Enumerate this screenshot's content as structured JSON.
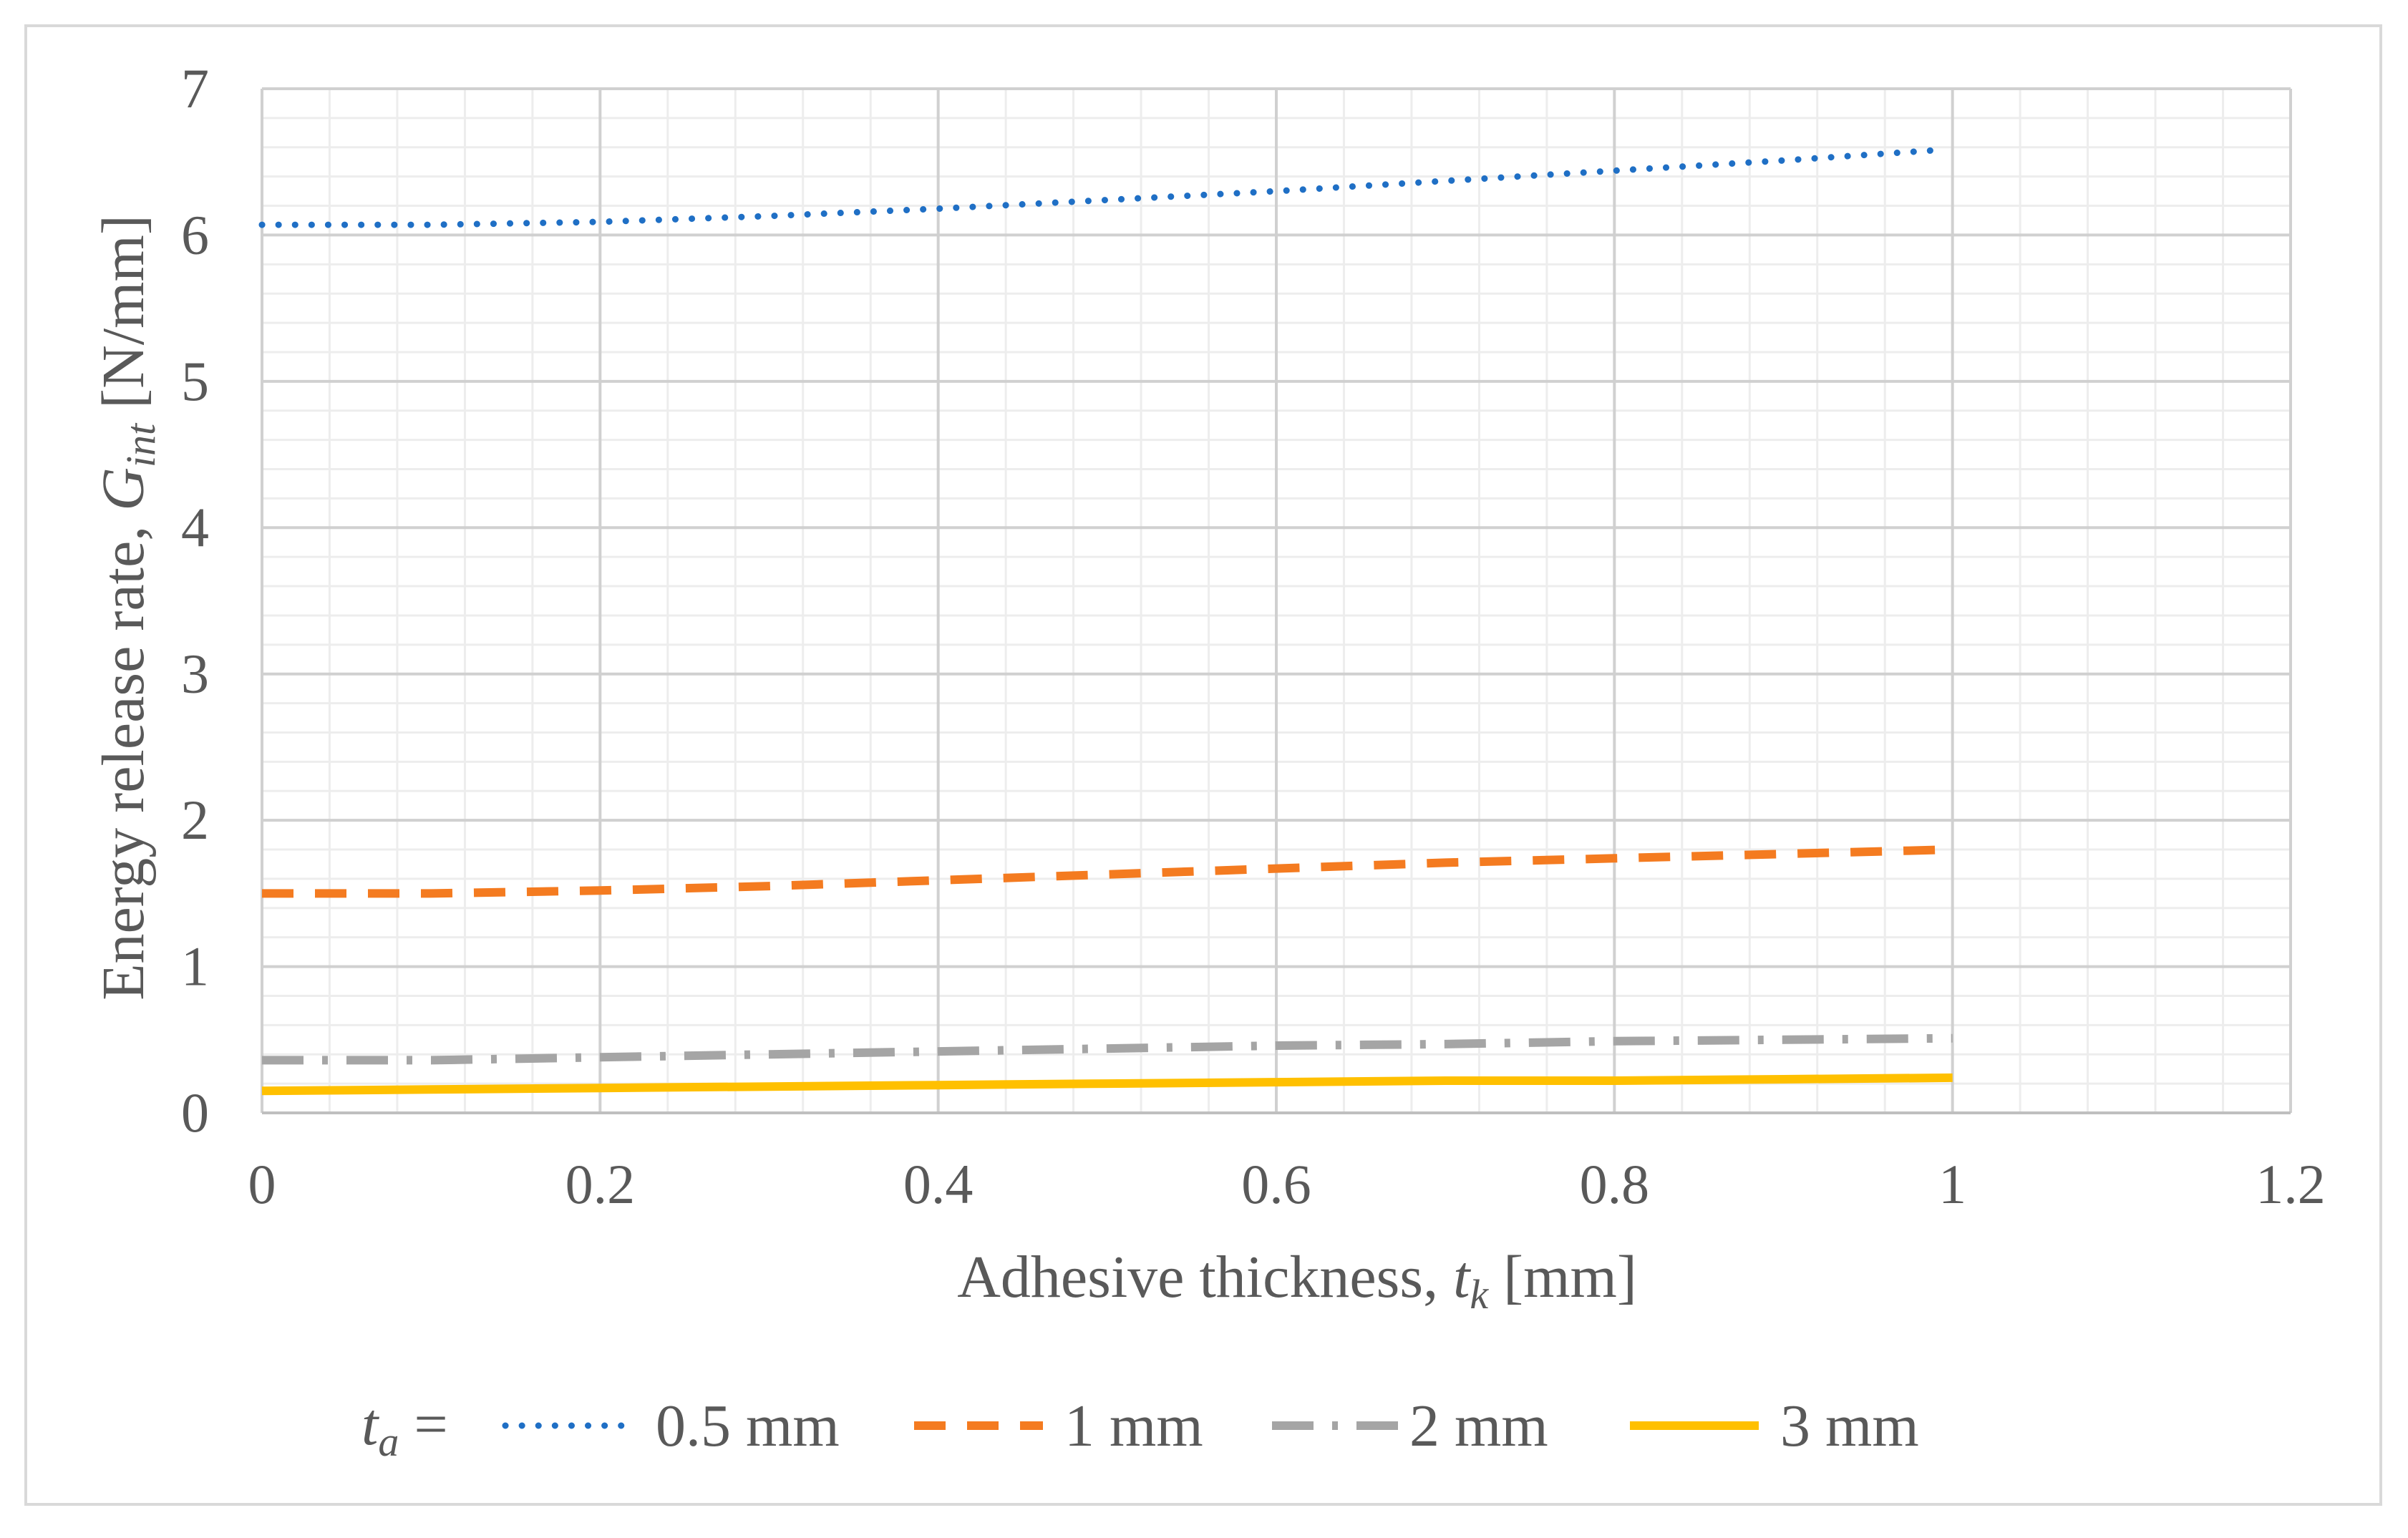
{
  "chart_data": {
    "type": "line",
    "title": "",
    "xlabel": {
      "prefix": "Adhesive thickness, ",
      "symbol": "t",
      "subscript": "k",
      "suffix": " [mm]"
    },
    "ylabel": {
      "prefix": "Energy release rate, ",
      "symbol": "G",
      "subscript": "int",
      "suffix": " [N/mm]"
    },
    "xlim": [
      0,
      1.2
    ],
    "ylim": [
      0,
      7
    ],
    "xticks": [
      "0",
      "0.2",
      "0.4",
      "0.6",
      "0.8",
      "1",
      "1.2"
    ],
    "yticks": [
      "0",
      "1",
      "2",
      "3",
      "4",
      "5",
      "6",
      "7"
    ],
    "grid": true,
    "minor_grid": true,
    "legend_position": "bottom",
    "legend_title": {
      "symbol": "t",
      "subscript": "a",
      "suffix": " ="
    },
    "series": [
      {
        "name": "0.5 mm",
        "color": "#1f6fc5",
        "style": "dotted",
        "x": [
          0,
          0.1,
          0.2,
          0.3,
          0.4,
          0.5,
          0.6,
          0.7,
          0.8,
          0.9,
          0.99
        ],
        "y": [
          6.07,
          6.07,
          6.09,
          6.13,
          6.18,
          6.24,
          6.3,
          6.37,
          6.44,
          6.51,
          6.58
        ]
      },
      {
        "name": "1 mm",
        "color": "#f47b20",
        "style": "dashed",
        "x": [
          0,
          0.1,
          0.2,
          0.3,
          0.4,
          0.5,
          0.6,
          0.7,
          0.8,
          0.9,
          1
        ],
        "y": [
          1.5,
          1.5,
          1.52,
          1.55,
          1.59,
          1.63,
          1.67,
          1.71,
          1.74,
          1.77,
          1.8
        ]
      },
      {
        "name": "2 mm",
        "color": "#a5a5a5",
        "style": "dashdot",
        "x": [
          0,
          0.1,
          0.2,
          0.3,
          0.4,
          0.5,
          0.6,
          0.7,
          0.8,
          0.9,
          1
        ],
        "y": [
          0.36,
          0.36,
          0.38,
          0.4,
          0.42,
          0.44,
          0.46,
          0.47,
          0.49,
          0.5,
          0.51
        ]
      },
      {
        "name": "3 mm",
        "color": "#ffc000",
        "style": "solid",
        "x": [
          0,
          0.1,
          0.2,
          0.3,
          0.4,
          0.5,
          0.6,
          0.7,
          0.8,
          0.9,
          1
        ],
        "y": [
          0.15,
          0.16,
          0.17,
          0.18,
          0.19,
          0.2,
          0.21,
          0.22,
          0.22,
          0.23,
          0.24
        ]
      }
    ]
  }
}
